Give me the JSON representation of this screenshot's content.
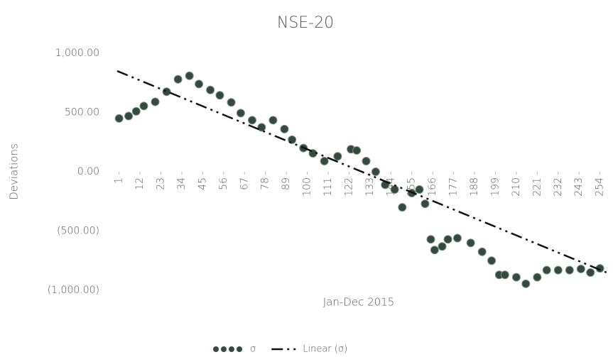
{
  "chart_data": {
    "type": "scatter",
    "title": "NSE-20",
    "xlabel": "Jan-Dec 2015",
    "ylabel": "Deviations",
    "xlim": [
      0,
      259
    ],
    "ylim": [
      -1000,
      1000
    ],
    "xticks": [
      1,
      12,
      23,
      34,
      45,
      56,
      67,
      78,
      89,
      100,
      111,
      122,
      133,
      144,
      155,
      166,
      177,
      188,
      199,
      210,
      221,
      232,
      243,
      254
    ],
    "yticks": [
      {
        "value": 1000,
        "label": "1,000.00"
      },
      {
        "value": 500,
        "label": "500.00"
      },
      {
        "value": 0,
        "label": "0.00"
      },
      {
        "value": -500,
        "label": "(500.00)"
      },
      {
        "value": -1000,
        "label": "(1,000.00)"
      }
    ],
    "grid": false,
    "legend": "bottom",
    "series": [
      {
        "name": "σ",
        "color": "#34493f",
        "x": [
          1,
          6,
          10,
          14,
          20,
          26,
          32,
          38,
          43,
          49,
          54,
          60,
          65,
          71,
          76,
          82,
          88,
          92,
          98,
          103,
          109,
          116,
          123,
          126,
          131,
          136,
          141,
          146,
          150,
          155,
          159,
          162,
          165,
          167,
          171,
          174,
          179,
          186,
          192,
          197,
          201,
          204,
          210,
          215,
          221,
          226,
          232,
          238,
          244,
          249,
          254
        ],
        "values": [
          450,
          470,
          510,
          555,
          590,
          675,
          780,
          810,
          740,
          690,
          645,
          585,
          495,
          435,
          375,
          435,
          360,
          270,
          200,
          155,
          90,
          130,
          190,
          180,
          90,
          0,
          -110,
          -150,
          -300,
          -180,
          -150,
          -270,
          -570,
          -660,
          -630,
          -570,
          -560,
          -600,
          -675,
          -750,
          -870,
          -870,
          -890,
          -945,
          -890,
          -830,
          -830,
          -830,
          -820,
          -850,
          -815
        ]
      },
      {
        "name": "Linear (σ)",
        "color": "#111111",
        "trendline": true,
        "x": [
          0,
          259
        ],
        "values": [
          850,
          -860
        ]
      }
    ]
  }
}
